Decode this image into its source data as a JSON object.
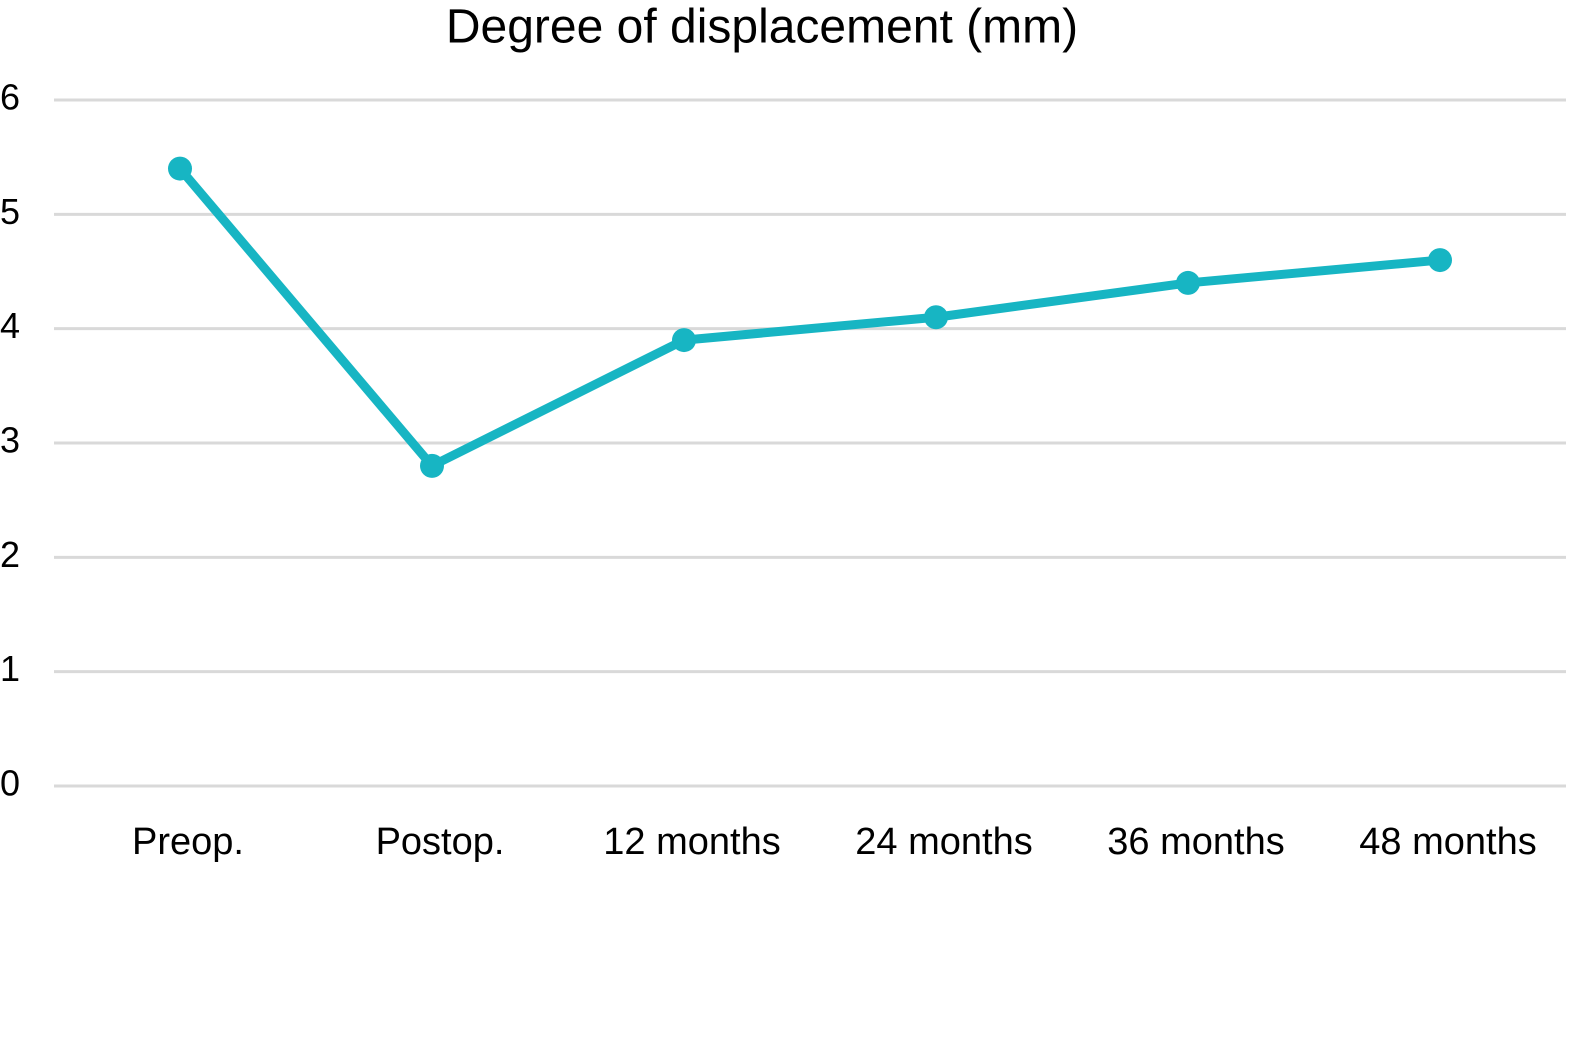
{
  "chart_data": {
    "type": "line",
    "title": "Degree of displacement (mm)",
    "categories": [
      "Preop.",
      "Postop.",
      "12 months",
      "24 months",
      "36 months",
      "48 months"
    ],
    "values": [
      5.4,
      2.8,
      3.9,
      4.1,
      4.4,
      4.6
    ],
    "color": "#17b5c3",
    "ylim": [
      0,
      6
    ],
    "yticks": [
      0,
      1,
      2,
      3,
      4,
      5,
      6
    ],
    "grid": true
  }
}
